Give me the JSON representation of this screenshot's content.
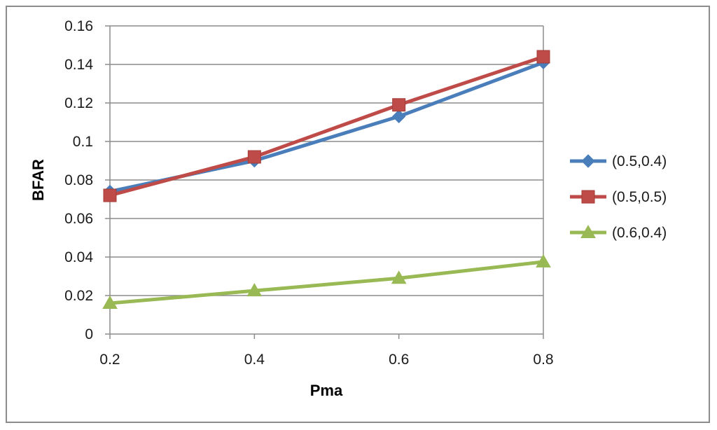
{
  "chart_data": {
    "type": "line",
    "title": "",
    "xlabel": "Pma",
    "ylabel": "BFAR",
    "x": [
      0.2,
      0.4,
      0.6,
      0.8
    ],
    "x_tick_labels": [
      "0.2",
      "0.4",
      "0.6",
      "0.8"
    ],
    "ylim": [
      0,
      0.16
    ],
    "y_ticks": [
      0,
      0.02,
      0.04,
      0.06,
      0.08,
      0.1,
      0.12,
      0.14,
      0.16
    ],
    "y_tick_labels": [
      "0",
      "0.02",
      "0.04",
      "0.06",
      "0.08",
      "0.1",
      "0.12",
      "0.14",
      "0.16"
    ],
    "grid": true,
    "legend_position": "right",
    "series": [
      {
        "name": "(0.5,0.4)",
        "values": [
          0.074,
          0.09,
          0.113,
          0.141
        ],
        "color": "#4a7ebb",
        "marker": "diamond"
      },
      {
        "name": "(0.5,0.5)",
        "values": [
          0.072,
          0.092,
          0.119,
          0.144
        ],
        "color": "#be4b48",
        "marker": "square"
      },
      {
        "name": "(0.6,0.4)",
        "values": [
          0.016,
          0.0225,
          0.029,
          0.0375
        ],
        "color": "#98b954",
        "marker": "triangle"
      }
    ]
  }
}
